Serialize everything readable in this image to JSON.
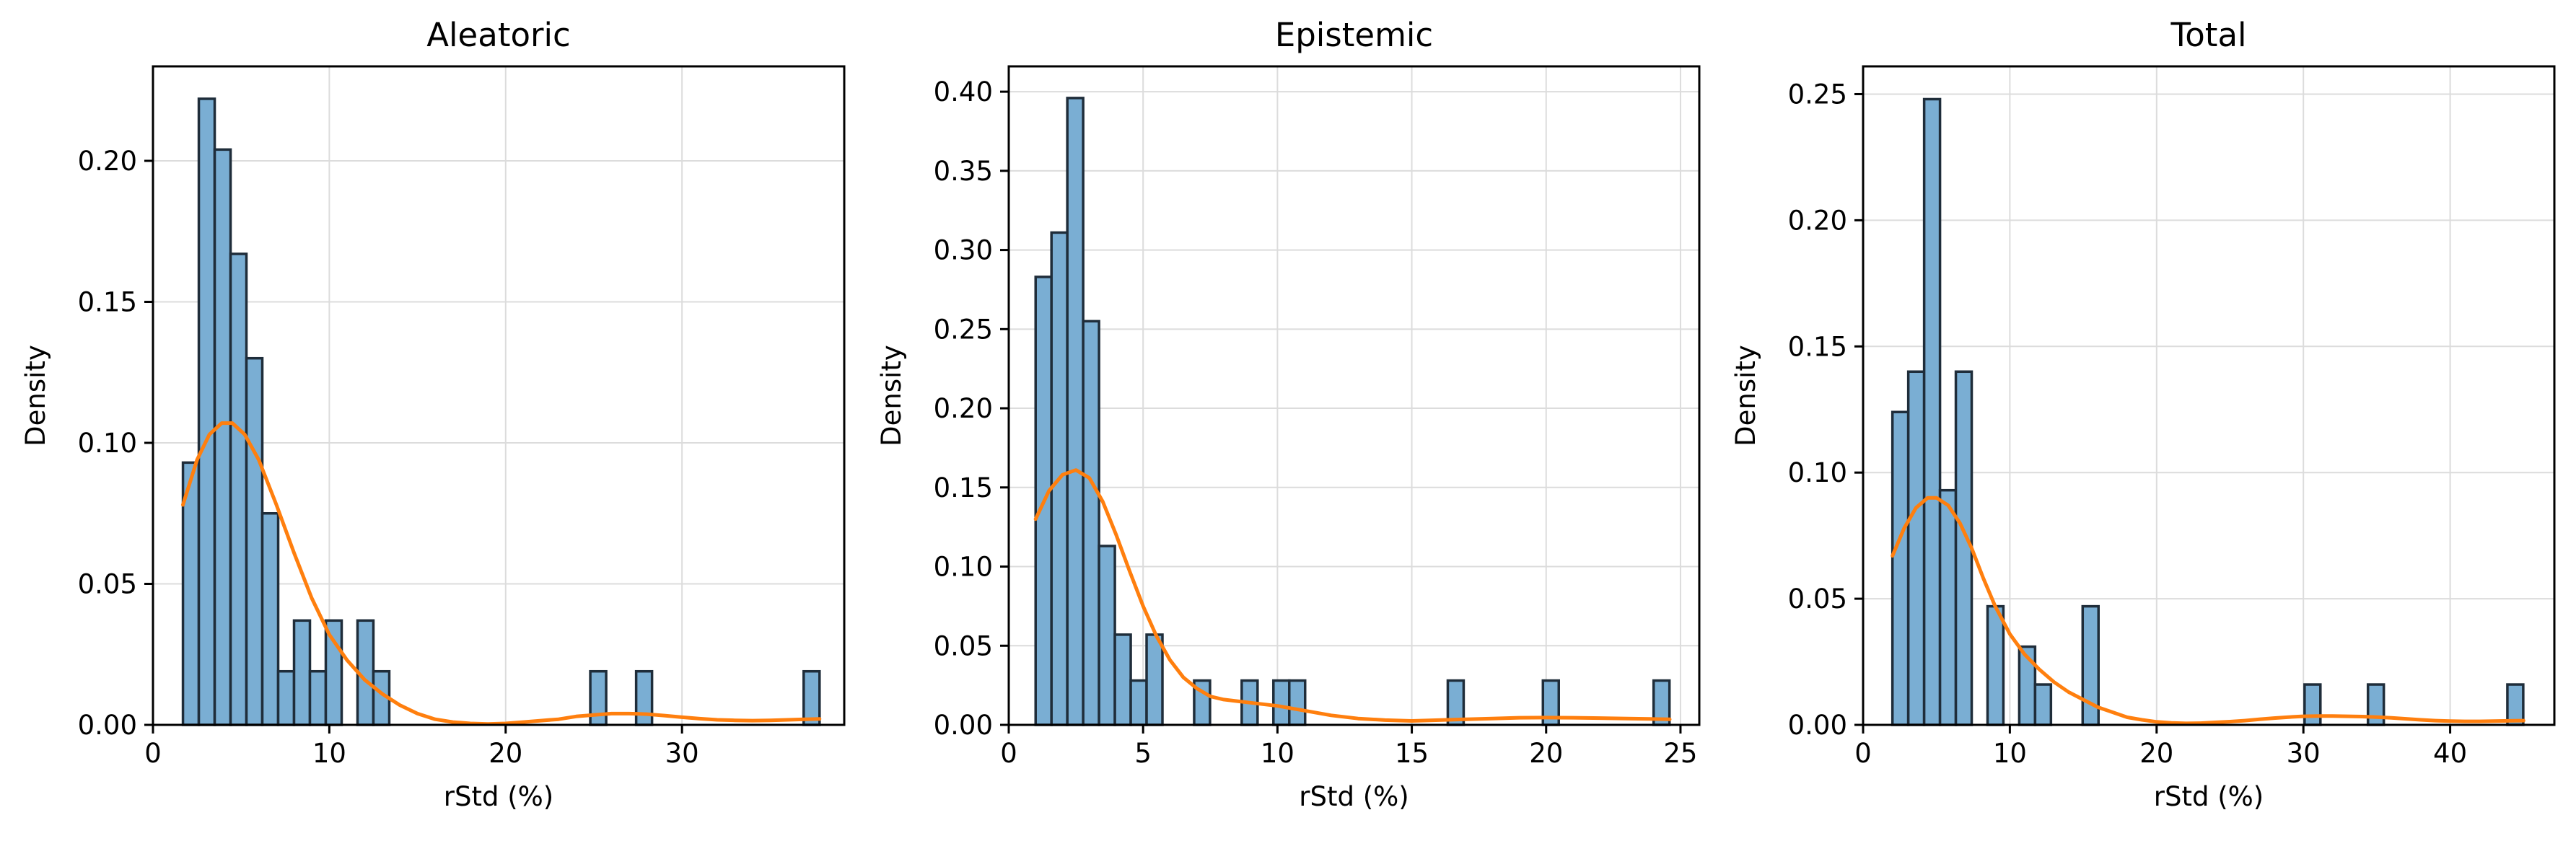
{
  "chart_data": [
    {
      "type": "bar",
      "title": "Aleatoric",
      "xlabel": "rStd (%)",
      "ylabel": "Density",
      "xlim": [
        0,
        39.2
      ],
      "ylim": [
        0,
        0.2335
      ],
      "xticks": [
        0,
        10,
        20,
        30
      ],
      "yticks": [
        0.0,
        0.05,
        0.1,
        0.15,
        0.2
      ],
      "ytick_decimals": 2,
      "grid": true,
      "bin_width": 0.9,
      "bins": [
        {
          "x0": 1.7,
          "v": 0.093
        },
        {
          "x0": 2.6,
          "v": 0.222
        },
        {
          "x0": 3.5,
          "v": 0.204
        },
        {
          "x0": 4.4,
          "v": 0.167
        },
        {
          "x0": 5.3,
          "v": 0.13
        },
        {
          "x0": 6.2,
          "v": 0.075
        },
        {
          "x0": 7.1,
          "v": 0.019
        },
        {
          "x0": 8.0,
          "v": 0.037
        },
        {
          "x0": 8.9,
          "v": 0.019
        },
        {
          "x0": 9.8,
          "v": 0.037
        },
        {
          "x0": 10.7,
          "v": 0.0
        },
        {
          "x0": 11.6,
          "v": 0.037
        },
        {
          "x0": 12.5,
          "v": 0.019
        },
        {
          "x0": 24.8,
          "v": 0.019
        },
        {
          "x0": 27.4,
          "v": 0.019
        },
        {
          "x0": 36.9,
          "v": 0.019
        }
      ],
      "kde": {
        "x": [
          1.7,
          2.5,
          3.2,
          3.9,
          4.5,
          5.2,
          6.0,
          7.0,
          8.0,
          9.0,
          10.0,
          11.0,
          12.0,
          13.0,
          14.0,
          15.0,
          16.0,
          17.0,
          18.0,
          19.0,
          20.0,
          21.0,
          22.0,
          23.0,
          24.0,
          25.0,
          26.0,
          27.0,
          28.0,
          29.0,
          30.0,
          31.0,
          32.0,
          33.0,
          34.0,
          35.0,
          36.0,
          37.0,
          37.8
        ],
        "y": [
          0.078,
          0.094,
          0.103,
          0.107,
          0.107,
          0.103,
          0.094,
          0.078,
          0.061,
          0.045,
          0.032,
          0.023,
          0.016,
          0.011,
          0.007,
          0.004,
          0.002,
          0.001,
          0.0005,
          0.0003,
          0.0005,
          0.001,
          0.0015,
          0.002,
          0.003,
          0.0035,
          0.004,
          0.004,
          0.0038,
          0.0033,
          0.0027,
          0.0022,
          0.0018,
          0.0016,
          0.0015,
          0.0016,
          0.0018,
          0.002,
          0.0021
        ]
      }
    },
    {
      "type": "bar",
      "title": "Epistemic",
      "xlabel": "rStd (%)",
      "ylabel": "Density",
      "xlim": [
        0,
        25.7
      ],
      "ylim": [
        0,
        0.416
      ],
      "xticks": [
        0,
        5,
        10,
        15,
        20,
        25
      ],
      "yticks": [
        0.0,
        0.05,
        0.1,
        0.15,
        0.2,
        0.25,
        0.3,
        0.35,
        0.4
      ],
      "ytick_decimals": 2,
      "grid": true,
      "bin_width": 0.59,
      "bins": [
        {
          "x0": 1.0,
          "v": 0.283
        },
        {
          "x0": 1.59,
          "v": 0.311
        },
        {
          "x0": 2.18,
          "v": 0.396
        },
        {
          "x0": 2.77,
          "v": 0.255
        },
        {
          "x0": 3.36,
          "v": 0.113
        },
        {
          "x0": 3.95,
          "v": 0.057
        },
        {
          "x0": 4.54,
          "v": 0.028
        },
        {
          "x0": 5.13,
          "v": 0.057
        },
        {
          "x0": 6.9,
          "v": 0.028
        },
        {
          "x0": 8.67,
          "v": 0.028
        },
        {
          "x0": 9.85,
          "v": 0.028
        },
        {
          "x0": 10.44,
          "v": 0.028
        },
        {
          "x0": 16.34,
          "v": 0.028
        },
        {
          "x0": 19.88,
          "v": 0.028
        },
        {
          "x0": 24.0,
          "v": 0.028
        }
      ],
      "kde": {
        "x": [
          1.0,
          1.5,
          2.0,
          2.5,
          3.0,
          3.5,
          4.0,
          4.5,
          5.0,
          5.5,
          6.0,
          6.5,
          7.0,
          7.5,
          8.0,
          8.5,
          9.0,
          10.0,
          11.0,
          12.0,
          13.0,
          14.0,
          15.0,
          16.0,
          17.0,
          18.0,
          19.0,
          20.0,
          21.0,
          22.0,
          23.0,
          24.0,
          24.6
        ],
        "y": [
          0.13,
          0.148,
          0.158,
          0.161,
          0.156,
          0.141,
          0.12,
          0.097,
          0.075,
          0.056,
          0.041,
          0.03,
          0.023,
          0.018,
          0.016,
          0.015,
          0.014,
          0.012,
          0.009,
          0.006,
          0.004,
          0.003,
          0.0025,
          0.003,
          0.0035,
          0.004,
          0.0045,
          0.0046,
          0.0045,
          0.0043,
          0.004,
          0.0037,
          0.0035
        ]
      }
    },
    {
      "type": "bar",
      "title": "Total",
      "xlabel": "rStd (%)",
      "ylabel": "Density",
      "xlim": [
        0,
        47.1
      ],
      "ylim": [
        0,
        0.261
      ],
      "xticks": [
        0,
        10,
        20,
        30,
        40
      ],
      "yticks": [
        0.0,
        0.05,
        0.1,
        0.15,
        0.2,
        0.25
      ],
      "ytick_decimals": 2,
      "grid": true,
      "bin_width": 1.08,
      "bins": [
        {
          "x0": 2.0,
          "v": 0.124
        },
        {
          "x0": 3.08,
          "v": 0.14
        },
        {
          "x0": 4.16,
          "v": 0.248
        },
        {
          "x0": 5.24,
          "v": 0.093
        },
        {
          "x0": 6.32,
          "v": 0.14
        },
        {
          "x0": 8.48,
          "v": 0.047
        },
        {
          "x0": 10.64,
          "v": 0.031
        },
        {
          "x0": 11.72,
          "v": 0.016
        },
        {
          "x0": 14.96,
          "v": 0.047
        },
        {
          "x0": 30.08,
          "v": 0.016
        },
        {
          "x0": 34.4,
          "v": 0.016
        },
        {
          "x0": 43.9,
          "v": 0.016
        }
      ],
      "kde": {
        "x": [
          2.0,
          2.8,
          3.6,
          4.4,
          5.0,
          5.8,
          6.6,
          7.4,
          8.2,
          9.0,
          10.0,
          11.0,
          12.0,
          13.0,
          14.0,
          15.0,
          16.0,
          17.0,
          18.0,
          19.0,
          20.0,
          21.0,
          22.0,
          23.0,
          24.0,
          25.0,
          26.0,
          27.0,
          28.0,
          29.0,
          30.0,
          31.0,
          32.0,
          33.0,
          34.0,
          35.0,
          36.0,
          37.0,
          38.0,
          39.0,
          40.0,
          41.0,
          42.0,
          43.0,
          44.0,
          45.0
        ],
        "y": [
          0.067,
          0.078,
          0.086,
          0.09,
          0.09,
          0.087,
          0.08,
          0.07,
          0.058,
          0.047,
          0.036,
          0.028,
          0.022,
          0.017,
          0.013,
          0.01,
          0.007,
          0.005,
          0.003,
          0.002,
          0.0012,
          0.0008,
          0.0006,
          0.0007,
          0.001,
          0.0013,
          0.0017,
          0.0022,
          0.0027,
          0.0031,
          0.0034,
          0.0035,
          0.0035,
          0.0034,
          0.0033,
          0.0031,
          0.0028,
          0.0024,
          0.002,
          0.0017,
          0.0015,
          0.0014,
          0.0014,
          0.0015,
          0.0016,
          0.0017
        ]
      }
    }
  ],
  "colors": {
    "bar_fill": "#7aaed3",
    "bar_edge": "#1f2d3a",
    "kde_line": "#ff7f0e",
    "grid": "#dcdcdc",
    "axes": "#000000"
  }
}
